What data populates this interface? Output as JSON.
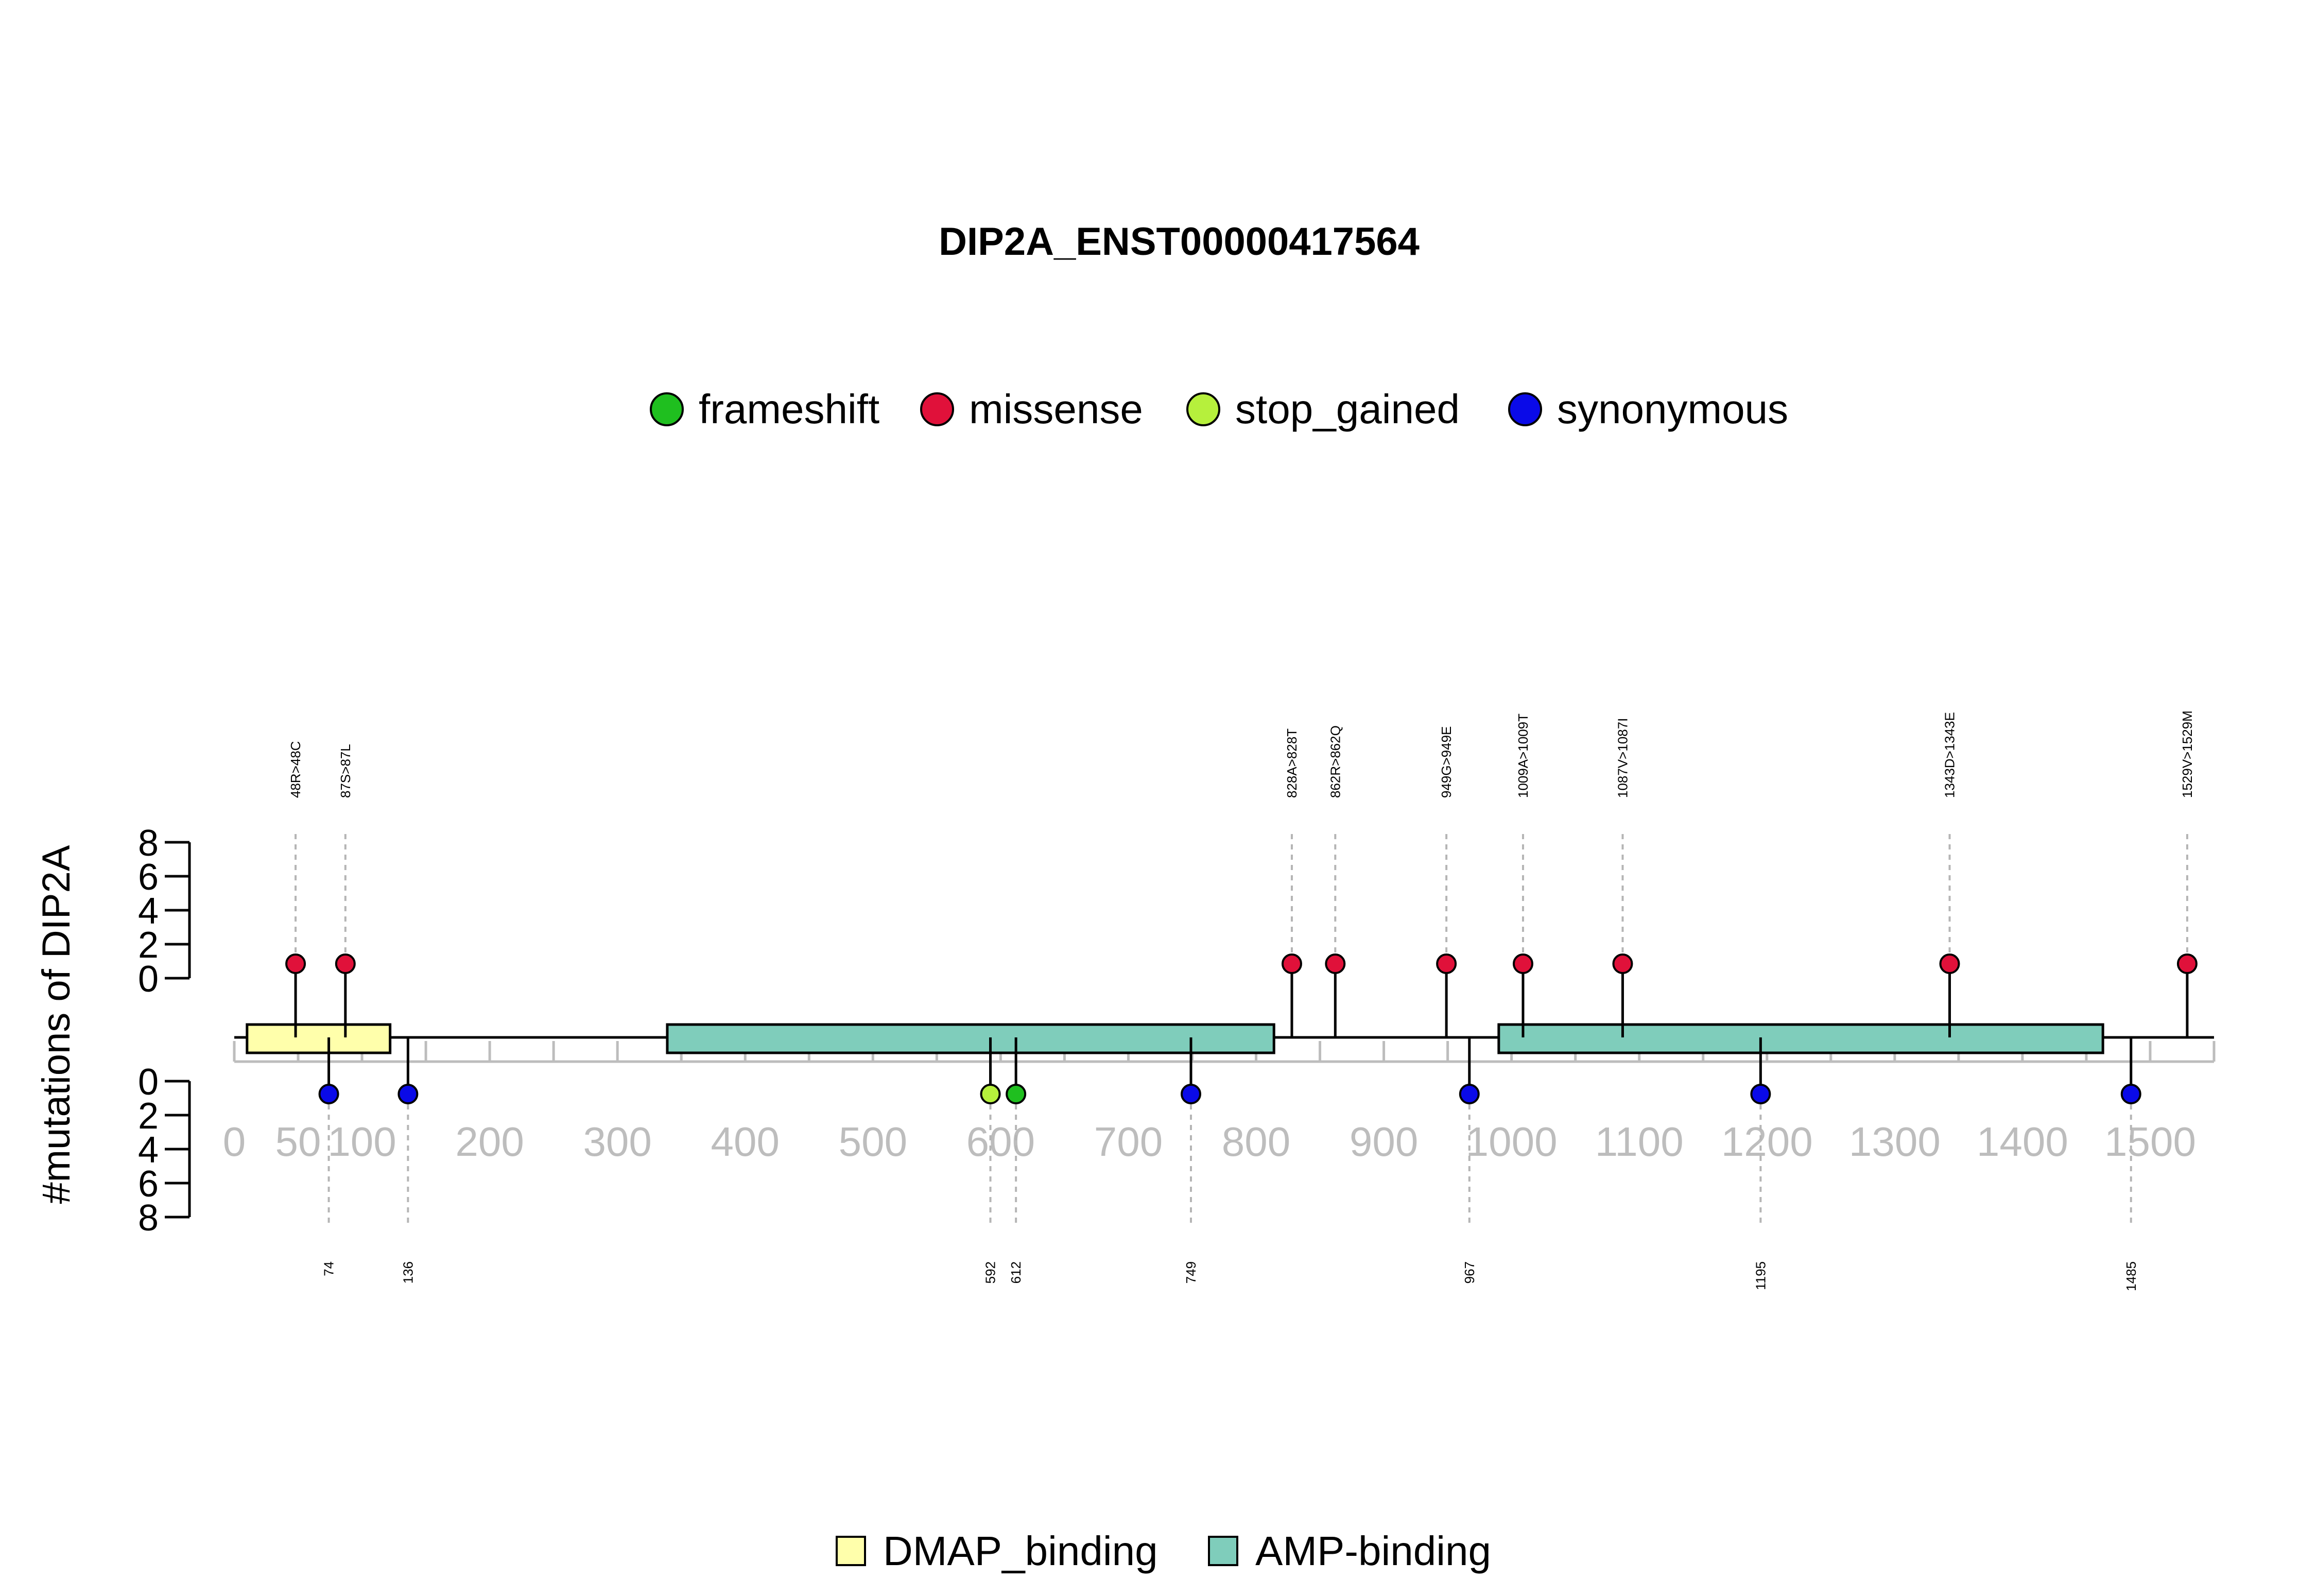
{
  "chart_data": {
    "type": "lollipop",
    "title": "DIP2A_ENST00000417564",
    "ylabel": "#mutations of DIP2A",
    "protein_length": 1550,
    "xlim": [
      0,
      1550
    ],
    "x_ticks": [
      0,
      50,
      100,
      200,
      300,
      400,
      500,
      600,
      700,
      800,
      900,
      1000,
      1100,
      1200,
      1300,
      1400,
      1500
    ],
    "y_ticks": [
      0,
      2,
      4,
      6,
      8
    ],
    "ylim": [
      0,
      8
    ],
    "mutation_types": [
      {
        "name": "frameshift",
        "color": "#1fbf1f"
      },
      {
        "name": "missense",
        "color": "#e0113a"
      },
      {
        "name": "stop_gained",
        "color": "#b6f03c"
      },
      {
        "name": "synonymous",
        "color": "#0a0ae8"
      }
    ],
    "domains": [
      {
        "name": "DMAP_binding",
        "start": 10,
        "end": 122,
        "color": "#ffffab"
      },
      {
        "name": "AMP-binding",
        "start": 339,
        "end": 814,
        "color": "#7fcdbb"
      },
      {
        "name": "AMP-binding",
        "start": 990,
        "end": 1463,
        "color": "#7fcdbb"
      }
    ],
    "mutations_above": [
      {
        "position": 48,
        "label": "48R>48C",
        "type": "missense",
        "count": 1
      },
      {
        "position": 87,
        "label": "87S>87L",
        "type": "missense",
        "count": 1
      },
      {
        "position": 828,
        "label": "828A>828T",
        "type": "missense",
        "count": 1
      },
      {
        "position": 862,
        "label": "862R>862Q",
        "type": "missense",
        "count": 1
      },
      {
        "position": 949,
        "label": "949G>949E",
        "type": "missense",
        "count": 1
      },
      {
        "position": 1009,
        "label": "1009A>1009T",
        "type": "missense",
        "count": 1
      },
      {
        "position": 1087,
        "label": "1087V>1087I",
        "type": "missense",
        "count": 1
      },
      {
        "position": 1343,
        "label": "1343D>1343E",
        "type": "missense",
        "count": 1
      },
      {
        "position": 1529,
        "label": "1529V>1529M",
        "type": "missense",
        "count": 1
      }
    ],
    "mutations_below": [
      {
        "position": 74,
        "label": "74",
        "type": "synonymous",
        "count": 1
      },
      {
        "position": 136,
        "label": "136",
        "type": "synonymous",
        "count": 1
      },
      {
        "position": 592,
        "label": "592",
        "type": "stop_gained",
        "count": 1
      },
      {
        "position": 612,
        "label": "612",
        "type": "frameshift",
        "count": 1
      },
      {
        "position": 749,
        "label": "749",
        "type": "synonymous",
        "count": 1
      },
      {
        "position": 967,
        "label": "967",
        "type": "synonymous",
        "count": 1
      },
      {
        "position": 1195,
        "label": "1195",
        "type": "synonymous",
        "count": 1
      },
      {
        "position": 1485,
        "label": "1485",
        "type": "synonymous",
        "count": 1
      }
    ],
    "domain_legend": [
      {
        "name": "DMAP_binding",
        "color": "#ffffab"
      },
      {
        "name": "AMP-binding",
        "color": "#7fcdbb"
      }
    ]
  }
}
